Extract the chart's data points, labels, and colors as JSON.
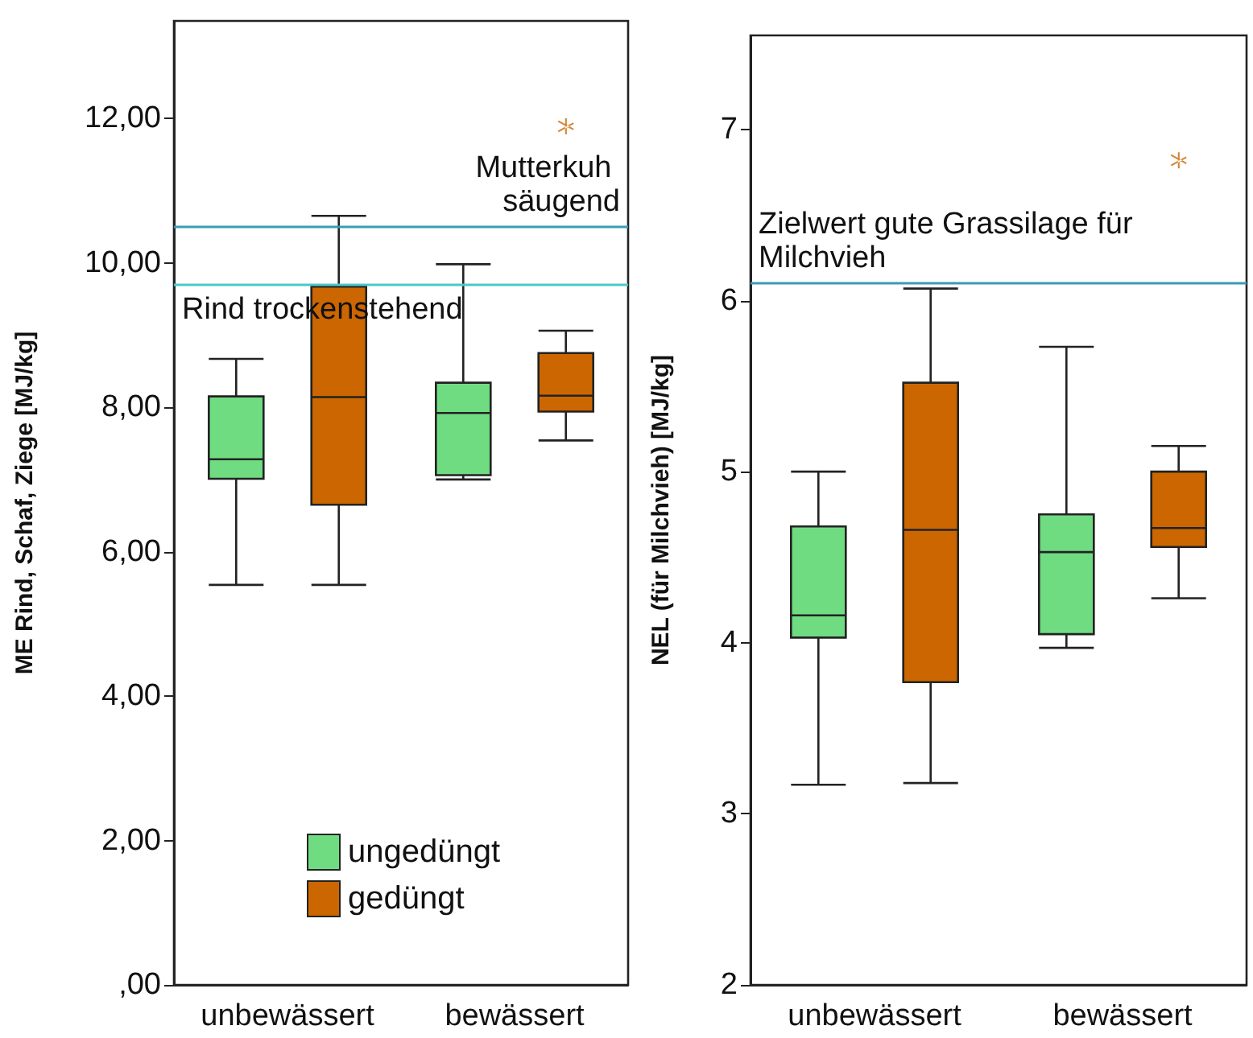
{
  "chart_data": [
    {
      "type": "box",
      "ylabel": "ME Rind, Schaf, Ziege [MJ/kg]",
      "categories": [
        "unbewässert",
        "bewässert"
      ],
      "series": [
        {
          "name": "ungedüngt",
          "color": "#6fdc82",
          "boxes": [
            {
              "low": 5.54,
              "q1": 7.01,
              "median": 7.28,
              "q3": 8.15,
              "high": 8.67
            },
            {
              "low": 7.0,
              "q1": 7.06,
              "median": 7.92,
              "q3": 8.34,
              "high": 9.98
            }
          ]
        },
        {
          "name": "gedüngt",
          "color": "#cc6600",
          "boxes": [
            {
              "low": 5.54,
              "q1": 6.65,
              "median": 8.14,
              "q3": 9.67,
              "high": 10.65
            },
            {
              "low": 7.54,
              "q1": 7.94,
              "median": 8.16,
              "q3": 8.75,
              "high": 9.06,
              "outliers": [
                11.89
              ]
            }
          ]
        }
      ],
      "ylim": [
        0,
        13.35
      ],
      "yticks": [
        {
          "value": 0,
          "label": ",00"
        },
        {
          "value": 2,
          "label": "2,00"
        },
        {
          "value": 4,
          "label": "4,00"
        },
        {
          "value": 6,
          "label": "6,00"
        },
        {
          "value": 8,
          "label": "8,00"
        },
        {
          "value": 10,
          "label": "10,00"
        },
        {
          "value": 12,
          "label": "12,00"
        }
      ],
      "ref_lines": [
        {
          "axis": "y",
          "value": 10.5,
          "label": "Mutterkuh säugend",
          "color": "#3b9bb5"
        },
        {
          "axis": "y",
          "value": 9.7,
          "label": "Rind trockenstehend",
          "color": "#4cc7c7"
        }
      ],
      "legend": "bottom",
      "grid": false
    },
    {
      "type": "box",
      "ylabel": "NEL (für Milchvieh) [MJ/kg]",
      "categories": [
        "unbewässert",
        "bewässert"
      ],
      "series": [
        {
          "color": "#6fdc82",
          "boxes": [
            {
              "low": 3.17,
              "q1": 4.03,
              "median": 4.16,
              "q3": 4.68,
              "high": 5.0
            },
            {
              "low": 3.97,
              "q1": 4.05,
              "median": 4.53,
              "q3": 4.75,
              "high": 5.73
            }
          ]
        },
        {
          "color": "#cc6600",
          "boxes": [
            {
              "low": 3.18,
              "q1": 3.77,
              "median": 4.66,
              "q3": 5.52,
              "high": 6.07
            },
            {
              "low": 4.26,
              "q1": 4.56,
              "median": 4.67,
              "q3": 5.0,
              "high": 5.15,
              "outliers": [
                6.82
              ]
            }
          ]
        }
      ],
      "ylim": [
        2,
        7.55
      ],
      "yticks": [
        2,
        3,
        4,
        5,
        6,
        7
      ],
      "ref_lines": [
        {
          "axis": "y",
          "value": 6.1,
          "label": "Zielwert gute Grassilage für Milchvieh",
          "color": "#3b9bb5"
        }
      ],
      "grid": false
    }
  ]
}
